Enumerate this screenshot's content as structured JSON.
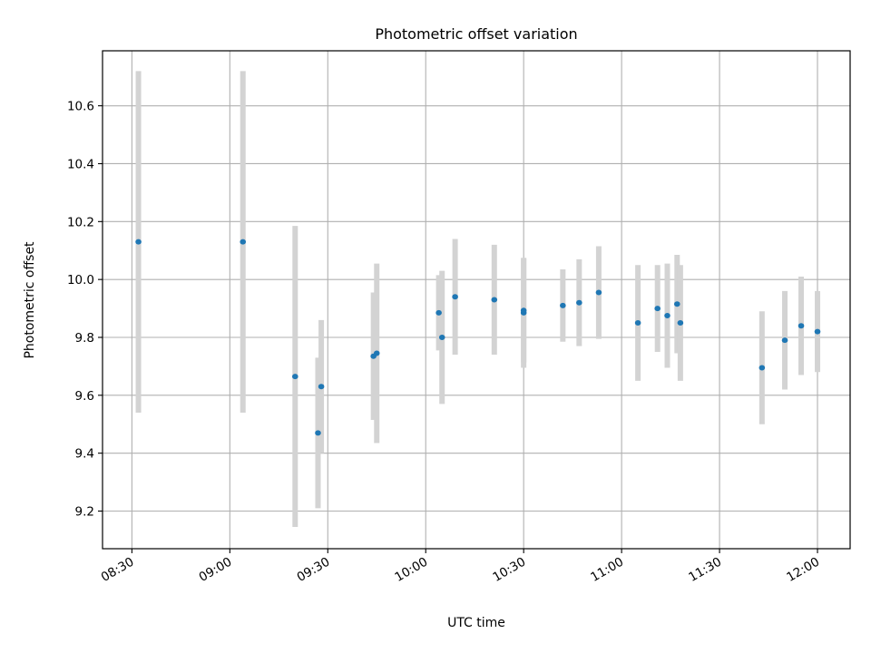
{
  "chart_data": {
    "type": "scatter",
    "title": "Photometric offset variation",
    "xlabel": "UTC time",
    "ylabel": "Photometric offset",
    "xlim": [
      "08:21",
      "12:10"
    ],
    "ylim": [
      9.07,
      10.79
    ],
    "x_ticks": [
      "08:30",
      "09:00",
      "09:30",
      "10:00",
      "10:30",
      "11:00",
      "11:30",
      "12:00"
    ],
    "y_ticks": [
      9.2,
      9.4,
      9.6,
      9.8,
      10.0,
      10.2,
      10.4,
      10.6
    ],
    "grid": true,
    "x_tick_rotation": 30,
    "marker_color": "#1f77b4",
    "errorbar_color": "#d3d3d3",
    "points": [
      {
        "t": "08:32",
        "y": 10.13,
        "err": 0.59
      },
      {
        "t": "09:04",
        "y": 10.13,
        "err": 0.59
      },
      {
        "t": "09:20",
        "y": 9.665,
        "err": 0.52
      },
      {
        "t": "09:27",
        "y": 9.47,
        "err": 0.26
      },
      {
        "t": "09:28",
        "y": 9.63,
        "err": 0.23
      },
      {
        "t": "09:44",
        "y": 9.735,
        "err": 0.22
      },
      {
        "t": "09:45",
        "y": 9.745,
        "err": 0.31
      },
      {
        "t": "10:04",
        "y": 9.885,
        "err": 0.13
      },
      {
        "t": "10:05",
        "y": 9.8,
        "err": 0.23
      },
      {
        "t": "10:09",
        "y": 9.94,
        "err": 0.2
      },
      {
        "t": "10:21",
        "y": 9.93,
        "err": 0.19
      },
      {
        "t": "10:30",
        "y": 9.885,
        "err": 0.19
      },
      {
        "t": "10:30",
        "y": 9.893,
        "err": 0.18
      },
      {
        "t": "10:42",
        "y": 9.91,
        "err": 0.125
      },
      {
        "t": "10:47",
        "y": 9.92,
        "err": 0.15
      },
      {
        "t": "10:53",
        "y": 9.955,
        "err": 0.16
      },
      {
        "t": "11:05",
        "y": 9.85,
        "err": 0.2
      },
      {
        "t": "11:11",
        "y": 9.9,
        "err": 0.15
      },
      {
        "t": "11:14",
        "y": 9.875,
        "err": 0.18
      },
      {
        "t": "11:17",
        "y": 9.915,
        "err": 0.17
      },
      {
        "t": "11:18",
        "y": 9.85,
        "err": 0.2
      },
      {
        "t": "11:43",
        "y": 9.695,
        "err": 0.195
      },
      {
        "t": "11:50",
        "y": 9.79,
        "err": 0.17
      },
      {
        "t": "11:55",
        "y": 9.84,
        "err": 0.17
      },
      {
        "t": "12:00",
        "y": 9.82,
        "err": 0.14
      }
    ]
  }
}
